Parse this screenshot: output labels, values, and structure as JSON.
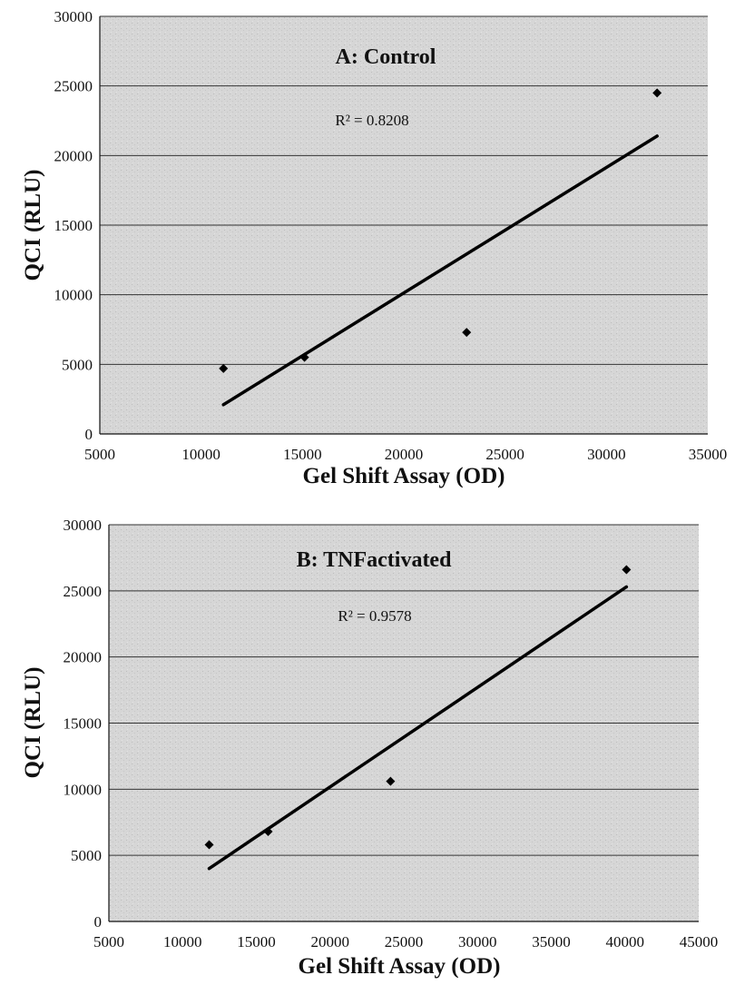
{
  "chart_data": [
    {
      "type": "scatter",
      "title": "A: Control",
      "xlabel": "Gel Shift Assay (OD)",
      "ylabel": "QCI (RLU)",
      "annotation": "R² = 0.8208",
      "xlim": [
        5000,
        35000
      ],
      "ylim": [
        0,
        30000
      ],
      "xticks": [
        5000,
        10000,
        15000,
        20000,
        25000,
        30000,
        35000
      ],
      "yticks": [
        0,
        5000,
        10000,
        15000,
        20000,
        25000,
        30000
      ],
      "grid": "horizontal",
      "series": [
        {
          "points": [
            {
              "x": 11100,
              "y": 4700
            },
            {
              "x": 15100,
              "y": 5500
            },
            {
              "x": 23100,
              "y": 7300
            },
            {
              "x": 32500,
              "y": 24500
            }
          ],
          "trendline": {
            "x": [
              11100,
              32500
            ],
            "y": [
              2100,
              21400
            ]
          }
        }
      ]
    },
    {
      "type": "scatter",
      "title": "B: TNFactivated",
      "xlabel": "Gel Shift Assay (OD)",
      "ylabel": "QCI (RLU)",
      "annotation": "R² = 0.9578",
      "xlim": [
        5000,
        45000
      ],
      "ylim": [
        0,
        30000
      ],
      "xticks": [
        5000,
        10000,
        15000,
        20000,
        25000,
        30000,
        35000,
        40000,
        45000
      ],
      "yticks": [
        0,
        5000,
        10000,
        15000,
        20000,
        25000,
        30000
      ],
      "grid": "horizontal",
      "series": [
        {
          "points": [
            {
              "x": 11800,
              "y": 5800
            },
            {
              "x": 15800,
              "y": 6800
            },
            {
              "x": 24100,
              "y": 10600
            },
            {
              "x": 40100,
              "y": 26600
            }
          ],
          "trendline": {
            "x": [
              11800,
              40100
            ],
            "y": [
              4000,
              25300
            ]
          }
        }
      ]
    }
  ]
}
